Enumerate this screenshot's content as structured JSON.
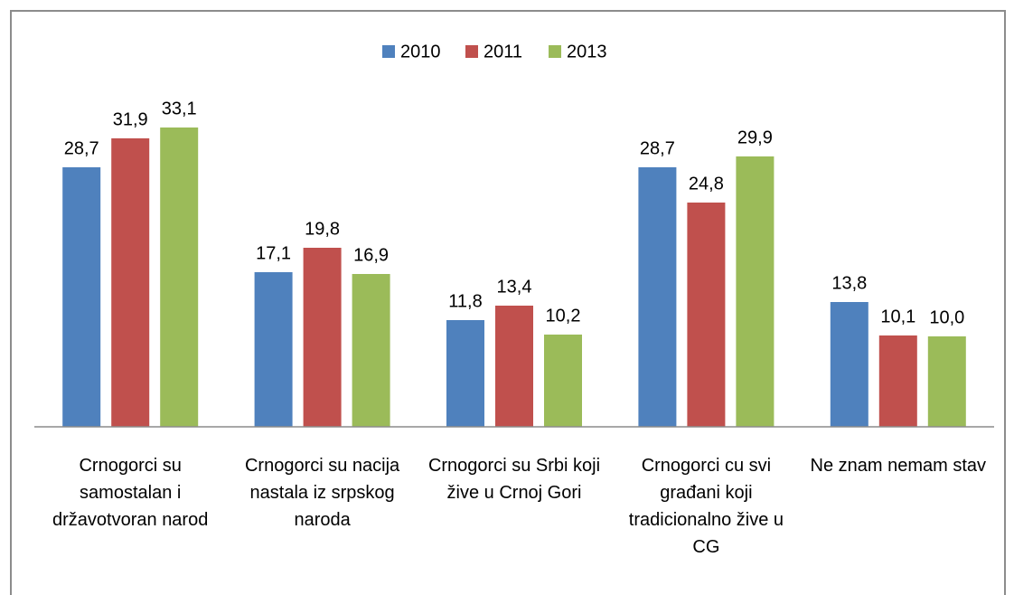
{
  "chart_data": {
    "type": "bar",
    "categories": [
      "Crnogorci su samostalan i državotvoran narod",
      "Crnogorci su nacija nastala iz srpskog naroda",
      "Crnogorci su Srbi koji žive u Crnoj Gori",
      "Crnogorci cu svi građani koji tradicionalno žive u CG",
      "Ne znam nemam stav"
    ],
    "series": [
      {
        "name": "2010",
        "color": "#4f81bd",
        "values": [
          28.7,
          17.1,
          11.8,
          28.7,
          13.8
        ],
        "value_labels": [
          "28,7",
          "17,1",
          "11,8",
          "28,7",
          "13,8"
        ]
      },
      {
        "name": "2011",
        "color": "#c0504d",
        "values": [
          31.9,
          19.8,
          13.4,
          24.8,
          10.1
        ],
        "value_labels": [
          "31,9",
          "19,8",
          "13,4",
          "24,8",
          "10,1"
        ]
      },
      {
        "name": "2013",
        "color": "#9bbb59",
        "values": [
          33.1,
          16.9,
          10.2,
          29.9,
          10.0
        ],
        "value_labels": [
          "33,1",
          "16,9",
          "10,2",
          "29,9",
          "10,0"
        ]
      }
    ],
    "ylim": [
      0,
      35
    ],
    "legend": "top"
  }
}
